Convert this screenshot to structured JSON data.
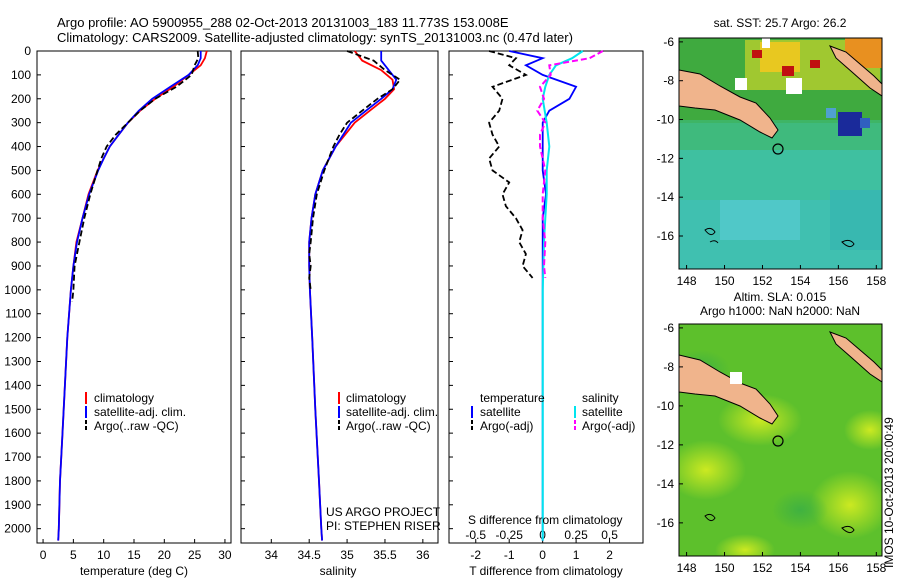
{
  "header": {
    "title_line1": "Argo profile: AO 5900955_288 02-Oct-2013 20131003_183 11.773S 153.008E",
    "title_line2": "Climatology: CARS2009. Satellite-adjusted climatology: synTS_20131003.nc (0.47d later)"
  },
  "colors": {
    "climatology": "#ff0000",
    "satellite": "#0000ff",
    "argo": "#000000",
    "sat_salinity": "#00e5ee",
    "argo_salinity": "#ff00ff"
  },
  "depth_axis": {
    "ticks": [
      0,
      100,
      200,
      300,
      400,
      500,
      600,
      700,
      800,
      900,
      1000,
      1100,
      1200,
      1300,
      1400,
      1500,
      1600,
      1700,
      1800,
      1900,
      2000
    ],
    "range": [
      0,
      2060
    ]
  },
  "chart_data": [
    {
      "id": "temperature",
      "type": "line",
      "xlabel": "temperature (deg C)",
      "ylabel": "",
      "xlim": [
        -1,
        31
      ],
      "xticks": [
        0,
        5,
        10,
        15,
        20,
        25,
        30
      ],
      "legend": [
        "climatology",
        "satellite-adj. clim.",
        "Argo(..raw -QC)"
      ],
      "series": [
        {
          "name": "climatology",
          "depth": [
            0,
            30,
            60,
            100,
            150,
            200,
            250,
            300,
            350,
            400,
            450,
            500,
            600,
            700,
            800,
            900,
            1000,
            1200,
            1400,
            1600,
            1800,
            2000,
            2050
          ],
          "values": [
            27,
            26.7,
            26,
            24,
            21.5,
            18.5,
            16,
            14,
            12.5,
            11,
            10,
            9,
            7.5,
            6.5,
            5.5,
            5,
            4.6,
            4,
            3.6,
            3.2,
            2.8,
            2.6,
            2.5
          ]
        },
        {
          "name": "satellite",
          "depth": [
            0,
            30,
            60,
            100,
            150,
            200,
            250,
            300,
            350,
            400,
            450,
            500,
            600,
            700,
            800,
            900,
            1000,
            1200,
            1400,
            1600,
            1800,
            2000,
            2050
          ],
          "values": [
            26,
            26,
            25.5,
            24,
            21,
            18,
            15.8,
            14,
            12.5,
            11,
            10,
            9.1,
            7.6,
            6.5,
            5.6,
            5,
            4.6,
            4,
            3.6,
            3.2,
            2.8,
            2.6,
            2.5
          ]
        },
        {
          "name": "Argo",
          "depth": [
            0,
            30,
            60,
            100,
            150,
            200,
            250,
            300,
            350,
            400,
            450,
            500,
            600,
            700,
            800,
            850,
            900,
            950,
            1000,
            1050
          ],
          "values": [
            25.5,
            25.6,
            25,
            24.5,
            22,
            18.5,
            16,
            14,
            12,
            10.5,
            9.6,
            9,
            7.8,
            6.8,
            6,
            5.6,
            5.2,
            5.1,
            5,
            4.8
          ]
        }
      ]
    },
    {
      "id": "salinity",
      "type": "line",
      "xlabel": "salinity",
      "xlim": [
        33.6,
        36.2
      ],
      "xticks": [
        34,
        34.5,
        35,
        35.5,
        36
      ],
      "xtick_labels": [
        "34",
        "34.5",
        "35",
        "35.5",
        "36"
      ],
      "legend": [
        "climatology",
        "satellite-adj. clim.",
        "Argo(..raw -QC)"
      ],
      "series": [
        {
          "name": "climatology",
          "depth": [
            0,
            40,
            80,
            120,
            160,
            200,
            250,
            300,
            400,
            500,
            600,
            700,
            800,
            900,
            1000,
            1200,
            1500,
            1800,
            2000,
            2050
          ],
          "values": [
            35.1,
            35.2,
            35.45,
            35.6,
            35.62,
            35.5,
            35.3,
            35.1,
            34.85,
            34.68,
            34.58,
            34.53,
            34.5,
            34.5,
            34.51,
            34.54,
            34.58,
            34.63,
            34.66,
            34.67
          ]
        },
        {
          "name": "satellite",
          "depth": [
            0,
            40,
            80,
            120,
            160,
            200,
            250,
            300,
            400,
            500,
            600,
            700,
            800,
            900,
            1000,
            1200,
            1500,
            1800,
            2000,
            2050
          ],
          "values": [
            35.45,
            35.45,
            35.55,
            35.65,
            35.6,
            35.45,
            35.25,
            35.05,
            34.85,
            34.68,
            34.58,
            34.53,
            34.5,
            34.5,
            34.51,
            34.54,
            34.58,
            34.63,
            34.66,
            34.67
          ]
        },
        {
          "name": "Argo",
          "depth": [
            0,
            40,
            80,
            120,
            160,
            200,
            250,
            300,
            350,
            400,
            500,
            600,
            700,
            800,
            850,
            900,
            950,
            1000
          ],
          "values": [
            35.0,
            35.35,
            35.5,
            35.7,
            35.6,
            35.4,
            35.2,
            35.0,
            34.9,
            34.82,
            34.7,
            34.6,
            34.55,
            34.52,
            34.5,
            34.52,
            34.5,
            34.52
          ]
        }
      ],
      "annotation": [
        "US ARGO PROJECT",
        "PI: STEPHEN RISER"
      ]
    },
    {
      "id": "difference",
      "type": "line",
      "xlabel_bottom": "T difference from climatology",
      "xlabel_top": "S difference from climatology",
      "xlim": [
        -2.8,
        3
      ],
      "xticks": [
        -2,
        -1,
        0,
        1,
        2
      ],
      "xtick_labels": [
        "-2",
        "-1",
        "0",
        "1",
        "2"
      ],
      "s_ticks": [
        -0.5,
        -0.25,
        0,
        0.25,
        0.5
      ],
      "s_tick_labels": [
        "-0.5",
        "-0.25",
        "0",
        "0.25",
        "0.5"
      ],
      "legend": {
        "temperature": "temperature",
        "salinity": "salinity",
        "satellite": "satellite",
        "argo": "Argo(-adj)"
      },
      "series": [
        {
          "name": "T satellite",
          "depth": [
            0,
            30,
            60,
            100,
            150,
            200,
            250,
            300,
            400,
            500,
            600,
            700,
            800,
            1000,
            1500,
            2000,
            2050
          ],
          "values": [
            -1,
            0,
            -0.5,
            0,
            1,
            0.8,
            0.2,
            0,
            0,
            0,
            0.1,
            0,
            0,
            0,
            0,
            0,
            0
          ]
        },
        {
          "name": "T Argo",
          "depth": [
            0,
            30,
            60,
            100,
            150,
            200,
            250,
            300,
            350,
            400,
            450,
            500,
            550,
            600,
            650,
            700,
            750,
            800,
            850,
            900,
            950
          ],
          "values": [
            -1.6,
            -0.8,
            -1,
            -0.5,
            -1.5,
            -1.2,
            -1.3,
            -1.6,
            -1.5,
            -1.3,
            -1.6,
            -1.5,
            -1,
            -1.2,
            -1.1,
            -0.8,
            -0.6,
            -0.7,
            -0.5,
            -0.6,
            -0.3
          ]
        },
        {
          "name": "S satellite",
          "depth": [
            0,
            30,
            60,
            100,
            150,
            200,
            300,
            400,
            500,
            600,
            700,
            800,
            1000,
            1500,
            2000,
            2050
          ],
          "values": [
            0.3,
            0.22,
            0.1,
            0.05,
            0.02,
            0,
            0.03,
            0.05,
            0.03,
            0.03,
            0.02,
            0.01,
            0,
            0,
            0,
            0
          ]
        },
        {
          "name": "S Argo",
          "depth": [
            0,
            30,
            60,
            100,
            150,
            200,
            250,
            300,
            350,
            400,
            500,
            600,
            700,
            800,
            900,
            950
          ],
          "values": [
            0.45,
            0.35,
            0.05,
            0.06,
            -0.02,
            0.01,
            -0.04,
            0.02,
            -0.02,
            -0.02,
            0.02,
            0.0,
            0.0,
            0.02,
            0.01,
            0.02
          ]
        }
      ]
    }
  ],
  "maps": [
    {
      "id": "sst-map",
      "title_lines": [
        "sat. SST: 25.7 Argo: 26.2"
      ],
      "lon_ticks": [
        148,
        150,
        152,
        154,
        156,
        158
      ],
      "lat_ticks": [
        -6,
        -8,
        -10,
        -12,
        -14,
        -16
      ],
      "lat_tick_labels": [
        "-6",
        "-8",
        "-10",
        "-12",
        "-14",
        "-16"
      ]
    },
    {
      "id": "sla-map",
      "title_lines": [
        "Altim. SLA: 0.015",
        "Argo h1000: NaN h2000: NaN"
      ],
      "lon_ticks": [
        148,
        150,
        152,
        154,
        156,
        158
      ],
      "lat_ticks": [
        -6,
        -8,
        -10,
        -12,
        -14,
        -16
      ],
      "lat_tick_labels": [
        "-6",
        "-8",
        "-10",
        "-12",
        "-14",
        "-16"
      ]
    }
  ],
  "footer": {
    "stamp": "IMOS 10-Oct-2013 20:00:49"
  }
}
